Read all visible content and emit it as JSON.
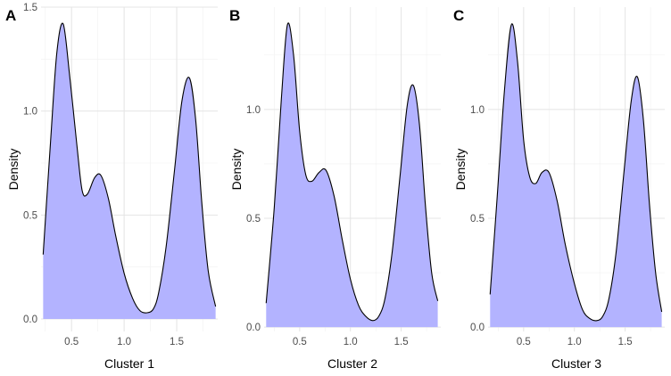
{
  "chart_data": [
    {
      "type": "area",
      "tag": "A",
      "xlabel": "Cluster 1",
      "ylabel": "Density",
      "xlim": [
        0.21,
        1.89
      ],
      "ylim": [
        -0.06,
        1.5
      ],
      "xticks": [
        "0.5",
        "1.0",
        "1.5"
      ],
      "yticks": [
        "0.0",
        "0.5",
        "1.0",
        "1.5"
      ],
      "ytick_values": [
        0,
        0.5,
        1.0,
        1.5
      ],
      "fill_color": "#b3b3ff",
      "line_color": "#000000",
      "grid": true,
      "x": [
        0.23,
        0.3,
        0.36,
        0.42,
        0.48,
        0.55,
        0.6,
        0.65,
        0.72,
        0.78,
        0.85,
        0.92,
        1.0,
        1.08,
        1.15,
        1.22,
        1.28,
        1.33,
        1.4,
        1.48,
        1.55,
        1.62,
        1.68,
        1.74,
        1.8,
        1.87
      ],
      "y": [
        0.31,
        0.85,
        1.28,
        1.42,
        1.18,
        0.84,
        0.62,
        0.6,
        0.68,
        0.69,
        0.58,
        0.4,
        0.22,
        0.1,
        0.04,
        0.03,
        0.05,
        0.13,
        0.35,
        0.72,
        1.05,
        1.16,
        0.96,
        0.55,
        0.23,
        0.06
      ]
    },
    {
      "type": "area",
      "tag": "B",
      "xlabel": "Cluster 2",
      "ylabel": "Density",
      "xlim": [
        0.15,
        1.89
      ],
      "ylim": [
        -0.02,
        1.47
      ],
      "xticks": [
        "0.5",
        "1.0",
        "1.5"
      ],
      "yticks": [
        "0.0",
        "0.5",
        "1.0"
      ],
      "ytick_values": [
        0,
        0.5,
        1.0
      ],
      "fill_color": "#b3b3ff",
      "line_color": "#000000",
      "grid": true,
      "x": [
        0.17,
        0.25,
        0.32,
        0.38,
        0.44,
        0.5,
        0.56,
        0.62,
        0.69,
        0.76,
        0.84,
        0.92,
        1.0,
        1.08,
        1.15,
        1.22,
        1.28,
        1.34,
        1.41,
        1.49,
        1.56,
        1.62,
        1.68,
        1.74,
        1.8,
        1.86
      ],
      "y": [
        0.11,
        0.55,
        1.05,
        1.39,
        1.25,
        0.9,
        0.7,
        0.67,
        0.71,
        0.72,
        0.6,
        0.4,
        0.22,
        0.1,
        0.05,
        0.03,
        0.05,
        0.13,
        0.34,
        0.7,
        1.02,
        1.11,
        0.93,
        0.55,
        0.25,
        0.12
      ]
    },
    {
      "type": "area",
      "tag": "C",
      "xlabel": "Cluster 3",
      "ylabel": "Density",
      "xlim": [
        0.15,
        1.89
      ],
      "ylim": [
        -0.02,
        1.47
      ],
      "xticks": [
        "0.5",
        "1.0",
        "1.5"
      ],
      "yticks": [
        "0.0",
        "0.5",
        "1.0"
      ],
      "ytick_values": [
        0,
        0.5,
        1.0
      ],
      "fill_color": "#b3b3ff",
      "line_color": "#000000",
      "grid": true,
      "x": [
        0.17,
        0.24,
        0.31,
        0.38,
        0.44,
        0.5,
        0.56,
        0.62,
        0.68,
        0.75,
        0.83,
        0.91,
        1.0,
        1.08,
        1.15,
        1.22,
        1.28,
        1.34,
        1.41,
        1.49,
        1.56,
        1.62,
        1.68,
        1.74,
        1.8,
        1.86
      ],
      "y": [
        0.15,
        0.6,
        1.08,
        1.39,
        1.22,
        0.86,
        0.69,
        0.66,
        0.71,
        0.71,
        0.58,
        0.38,
        0.2,
        0.08,
        0.04,
        0.03,
        0.05,
        0.13,
        0.34,
        0.72,
        1.04,
        1.15,
        0.95,
        0.56,
        0.25,
        0.07
      ]
    }
  ]
}
